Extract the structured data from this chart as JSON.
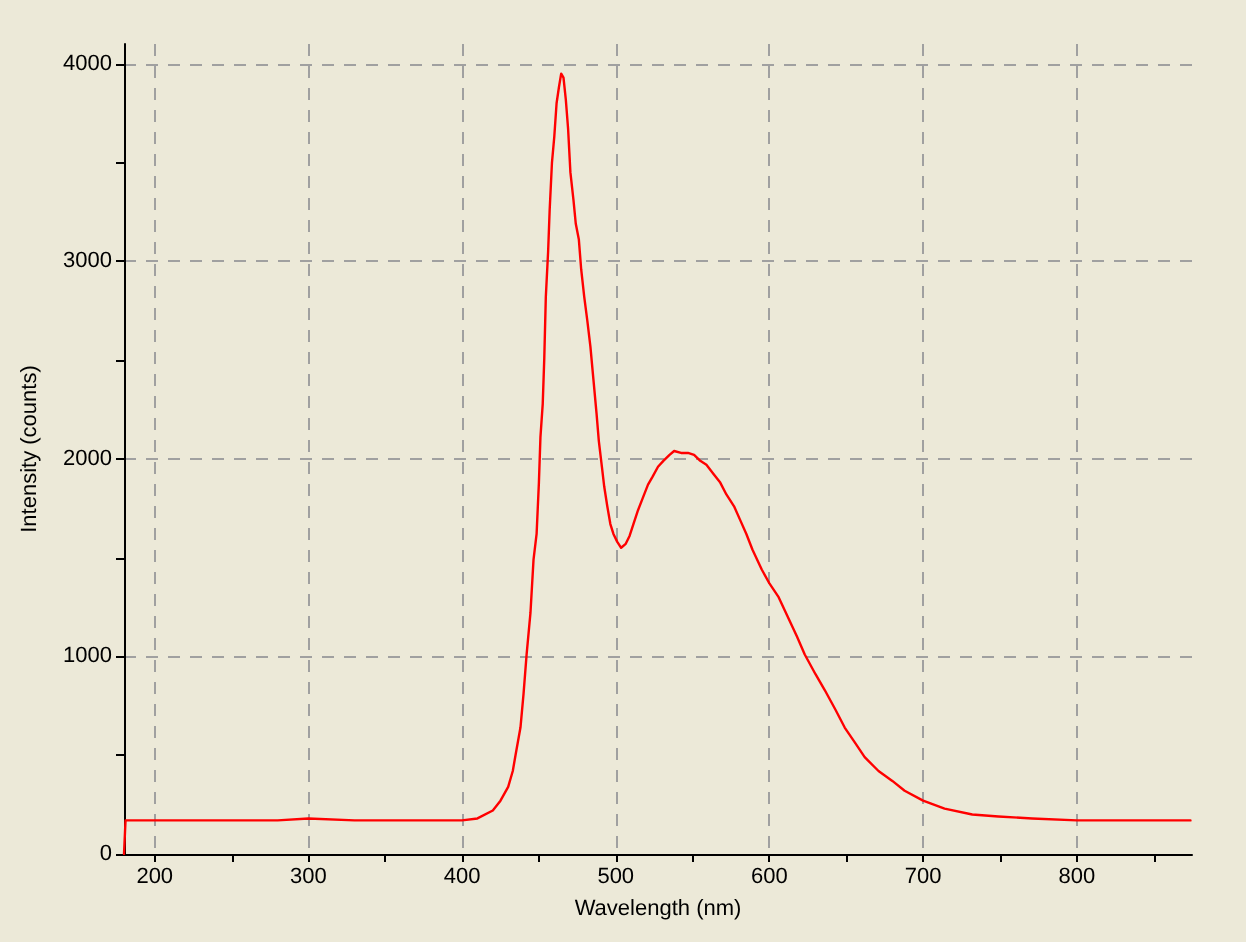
{
  "chart_data": {
    "type": "line",
    "xlabel": "Wavelength (nm)",
    "ylabel": "Intensity (counts)",
    "x": [
      180,
      181,
      190,
      200,
      220,
      250,
      280,
      300,
      330,
      350,
      380,
      400,
      410,
      420,
      425,
      430,
      433,
      435,
      438,
      440,
      442,
      444.5,
      446.5,
      448.5,
      450,
      451,
      452.5,
      453.5,
      454.5,
      456,
      457,
      458.5,
      460,
      461.5,
      463,
      464.5,
      466,
      467.5,
      469,
      470.5,
      472.5,
      474,
      476,
      477.5,
      479.5,
      481.5,
      483.5,
      485.5,
      487.5,
      489,
      491,
      492.5,
      494.5,
      496.5,
      498.5,
      501,
      503.5,
      506.5,
      509,
      511.5,
      514.5,
      517.5,
      521,
      524,
      527.5,
      531,
      535,
      538,
      542.5,
      547,
      551,
      555,
      559,
      564,
      568,
      572,
      577,
      581,
      585,
      589,
      595,
      600,
      606,
      612,
      618,
      623,
      630,
      636,
      643,
      649,
      656,
      662,
      671,
      680,
      688,
      700,
      714,
      732,
      749,
      771,
      800,
      836,
      874
    ],
    "series": [
      {
        "color": "#ff0000",
        "values": [
          0,
          170,
          170,
          170,
          170,
          170,
          170,
          180,
          170,
          170,
          170,
          170,
          180,
          220,
          270,
          340,
          420,
          510,
          640,
          810,
          1010,
          1220,
          1490,
          1620,
          1880,
          2110,
          2280,
          2510,
          2820,
          3050,
          3260,
          3500,
          3630,
          3800,
          3880,
          3950,
          3930,
          3820,
          3670,
          3450,
          3310,
          3190,
          3110,
          2960,
          2820,
          2700,
          2570,
          2400,
          2230,
          2090,
          1960,
          1860,
          1760,
          1670,
          1620,
          1580,
          1550,
          1570,
          1610,
          1670,
          1740,
          1800,
          1870,
          1910,
          1960,
          1990,
          2020,
          2040,
          2030,
          2030,
          2020,
          1990,
          1970,
          1920,
          1880,
          1820,
          1760,
          1690,
          1620,
          1540,
          1440,
          1370,
          1300,
          1200,
          1100,
          1010,
          910,
          830,
          730,
          640,
          560,
          490,
          420,
          370,
          320,
          270,
          230,
          200,
          190,
          180,
          170,
          170,
          170
        ]
      }
    ],
    "xlim": [
      180,
      875
    ],
    "ylim": [
      0,
      4100
    ],
    "xticks": [
      200,
      {
        "value": 250,
        "label": null
      },
      300,
      {
        "value": 350,
        "label": null
      },
      400,
      {
        "value": 450,
        "label": null
      },
      500,
      {
        "value": 550,
        "label": null
      },
      600,
      {
        "value": 650,
        "label": null
      },
      700,
      {
        "value": 750,
        "label": null
      },
      800,
      {
        "value": 850,
        "label": null
      }
    ],
    "yticks": [
      0,
      {
        "value": 500,
        "label": null
      },
      1000,
      {
        "value": 1500,
        "label": null
      },
      2000,
      {
        "value": 2500,
        "label": null
      },
      3000,
      {
        "value": 3500,
        "label": null
      },
      4000
    ],
    "grid": true,
    "marker": "none",
    "line_style": "solid"
  }
}
